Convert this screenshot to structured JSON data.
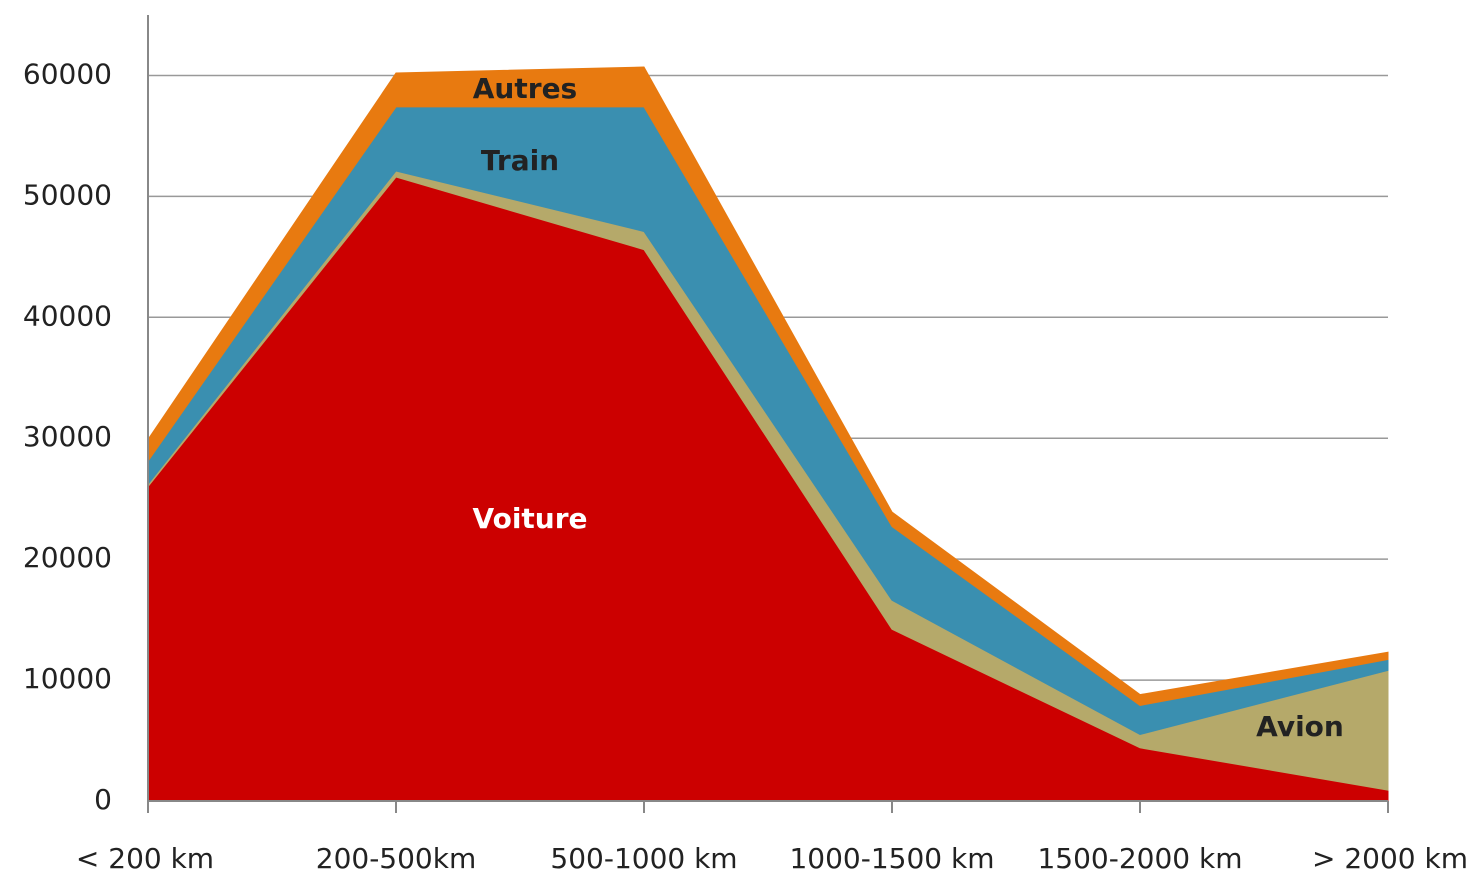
{
  "chart_data": {
    "type": "stacked_area",
    "categories": [
      "< 200 km",
      "200-500km",
      "500-1000 km",
      "1000-1500 km",
      "1500-2000 km",
      "> 2000 km"
    ],
    "series": [
      {
        "name": "Voiture",
        "color": "#cc0000",
        "values": [
          26000,
          51600,
          45600,
          14200,
          4400,
          900
        ]
      },
      {
        "name": "Avion",
        "color": "#b5a96a",
        "values": [
          200,
          500,
          1500,
          2400,
          1100,
          9900
        ]
      },
      {
        "name": "Train",
        "color": "#3a8fb0",
        "values": [
          1900,
          5300,
          10300,
          6100,
          2400,
          900
        ]
      },
      {
        "name": "Autres",
        "color": "#e87a10",
        "values": [
          1800,
          2800,
          3300,
          1200,
          900,
          600
        ]
      }
    ],
    "ylim": [
      0,
      65000
    ],
    "yticks": [
      0,
      10000,
      20000,
      30000,
      40000,
      50000,
      60000
    ],
    "grid": true
  }
}
